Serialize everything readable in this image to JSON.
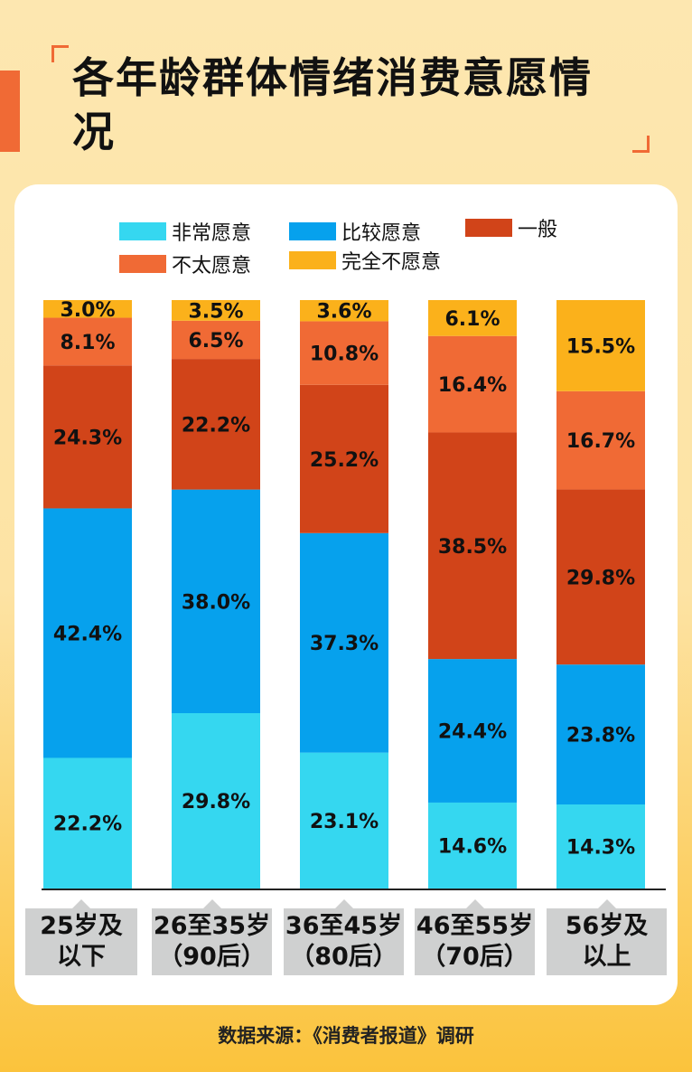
{
  "title": "各年龄群体情绪消费意愿情况",
  "source": "数据来源：《消费者报道》调研",
  "colors": {
    "very_willing": "#35d7f0",
    "fairly_willing": "#06a1ed",
    "neutral": "#d14419",
    "not_very_willing": "#f06a35",
    "not_willing": "#fbb11b",
    "accent": "#f06a35"
  },
  "legend": [
    {
      "label": "非常愿意",
      "color": "#35d7f0"
    },
    {
      "label": "比较愿意",
      "color": "#06a1ed"
    },
    {
      "label": "一般",
      "color": "#d14419"
    },
    {
      "label": "不太愿意",
      "color": "#f06a35"
    },
    {
      "label": "完全不愿意",
      "color": "#fbb11b"
    }
  ],
  "chart_data": {
    "type": "bar",
    "stacked": true,
    "title": "各年龄群体情绪消费意愿情况",
    "categories": [
      "25岁及以下",
      "26至35岁（90后）",
      "36至45岁（80后）",
      "46至55岁（70后）",
      "56岁及以上"
    ],
    "category_lines": [
      [
        "25岁及",
        "以下"
      ],
      [
        "26至35岁",
        "（90后）"
      ],
      [
        "36至45岁",
        "（80后）"
      ],
      [
        "46至55岁",
        "（70后）"
      ],
      [
        "56岁及",
        "以上"
      ]
    ],
    "series": [
      {
        "name": "非常愿意",
        "color": "#35d7f0",
        "values": [
          22.2,
          29.8,
          23.1,
          14.6,
          14.3
        ]
      },
      {
        "name": "比较愿意",
        "color": "#06a1ed",
        "values": [
          42.4,
          38.0,
          37.3,
          24.4,
          23.8
        ]
      },
      {
        "name": "一般",
        "color": "#d14419",
        "values": [
          24.3,
          22.2,
          25.2,
          38.5,
          29.8
        ]
      },
      {
        "name": "不太愿意",
        "color": "#f06a35",
        "values": [
          8.1,
          6.5,
          10.8,
          16.4,
          16.7
        ]
      },
      {
        "name": "完全不愿意",
        "color": "#fbb11b",
        "values": [
          3.0,
          3.5,
          3.6,
          6.1,
          15.5
        ]
      }
    ],
    "value_format": "0.0%",
    "ylim": [
      0,
      100
    ],
    "legend_position": "top",
    "grid": false
  }
}
